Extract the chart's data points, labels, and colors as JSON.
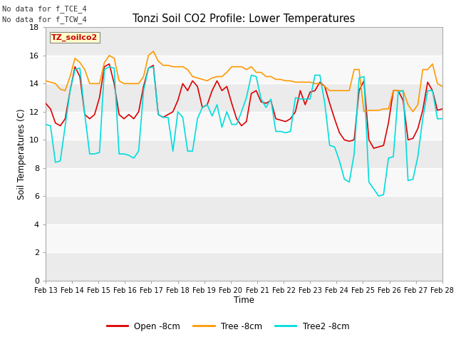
{
  "title": "Tonzi Soil CO2 Profile: Lower Temperatures",
  "xlabel": "Time",
  "ylabel": "Soil Temperatures (C)",
  "no_data_text_1": "No data for f_TCE_4",
  "no_data_text_2": "No data for f_TCW_4",
  "box_label": "TZ_soilco2",
  "ylim": [
    0,
    18
  ],
  "yticks": [
    0,
    2,
    4,
    6,
    8,
    10,
    12,
    14,
    16,
    18
  ],
  "legend_labels": [
    "Open -8cm",
    "Tree -8cm",
    "Tree2 -8cm"
  ],
  "line_colors": [
    "#dd0000",
    "#ff9900",
    "#00dddd"
  ],
  "bg_color": "#ffffff",
  "plot_bg_color": "#f0f0f0",
  "x_labels": [
    "Feb 13",
    "Feb 14",
    "Feb 15",
    "Feb 16",
    "Feb 17",
    "Feb 18",
    "Feb 19",
    "Feb 20",
    "Feb 21",
    "Feb 22",
    "Feb 23",
    "Feb 24",
    "Feb 25",
    "Feb 26",
    "Feb 27",
    "Feb 28"
  ],
  "open_8cm": [
    12.6,
    12.2,
    11.2,
    11.0,
    11.5,
    13.5,
    15.2,
    14.5,
    11.8,
    11.5,
    11.8,
    13.0,
    15.2,
    15.4,
    14.0,
    11.8,
    11.5,
    11.8,
    11.5,
    12.0,
    13.8,
    15.1,
    15.3,
    11.8,
    11.6,
    11.8,
    12.0,
    12.8,
    14.0,
    13.5,
    14.2,
    13.8,
    12.3,
    12.5,
    13.5,
    14.2,
    13.5,
    13.8,
    12.6,
    11.5,
    11.0,
    11.3,
    13.3,
    13.5,
    12.7,
    12.6,
    12.8,
    11.5,
    11.4,
    11.3,
    11.5,
    12.0,
    13.5,
    12.5,
    13.4,
    13.5,
    14.1,
    13.8,
    12.6,
    11.5,
    10.5,
    10.0,
    9.9,
    10.0,
    13.5,
    14.2,
    10.0,
    9.4,
    9.5,
    9.6,
    11.2,
    13.5,
    13.5,
    12.8,
    10.0,
    10.1,
    10.8,
    12.1,
    14.1,
    13.5,
    12.1,
    12.2
  ],
  "tree_8cm": [
    14.2,
    14.1,
    14.0,
    13.6,
    13.5,
    14.5,
    15.8,
    15.5,
    15.0,
    14.0,
    14.0,
    14.0,
    15.5,
    16.0,
    15.8,
    14.2,
    14.0,
    14.0,
    14.0,
    14.0,
    14.5,
    16.0,
    16.3,
    15.6,
    15.3,
    15.3,
    15.2,
    15.2,
    15.2,
    15.0,
    14.5,
    14.4,
    14.3,
    14.2,
    14.4,
    14.5,
    14.5,
    14.8,
    15.2,
    15.2,
    15.2,
    15.0,
    15.2,
    14.8,
    14.8,
    14.5,
    14.5,
    14.3,
    14.3,
    14.2,
    14.2,
    14.1,
    14.1,
    14.1,
    14.1,
    14.0,
    14.0,
    13.8,
    13.5,
    13.5,
    13.5,
    13.5,
    13.5,
    15.0,
    15.0,
    12.0,
    12.1,
    12.1,
    12.1,
    12.2,
    12.2,
    13.5,
    13.5,
    13.5,
    12.5,
    12.0,
    12.5,
    15.0,
    15.0,
    15.4,
    14.0,
    13.8
  ],
  "tree2_8cm": [
    11.1,
    11.0,
    8.4,
    8.5,
    11.0,
    13.5,
    15.0,
    15.1,
    11.8,
    9.0,
    9.0,
    9.1,
    15.0,
    15.2,
    15.1,
    9.0,
    9.0,
    8.9,
    8.7,
    9.2,
    13.5,
    15.1,
    15.2,
    11.8,
    11.6,
    11.6,
    9.2,
    12.0,
    11.6,
    9.2,
    9.2,
    11.5,
    12.3,
    12.5,
    11.7,
    12.5,
    10.9,
    12.0,
    11.1,
    11.1,
    12.0,
    13.0,
    14.6,
    14.5,
    12.9,
    12.3,
    12.9,
    10.6,
    10.6,
    10.5,
    10.6,
    13.0,
    12.9,
    12.9,
    12.9,
    14.6,
    14.6,
    12.6,
    9.6,
    9.5,
    8.5,
    7.2,
    7.0,
    9.0,
    14.4,
    14.5,
    7.0,
    6.5,
    6.0,
    6.1,
    8.7,
    8.8,
    13.4,
    13.5,
    7.1,
    7.2,
    8.8,
    11.5,
    13.5,
    13.5,
    11.5,
    11.5
  ]
}
